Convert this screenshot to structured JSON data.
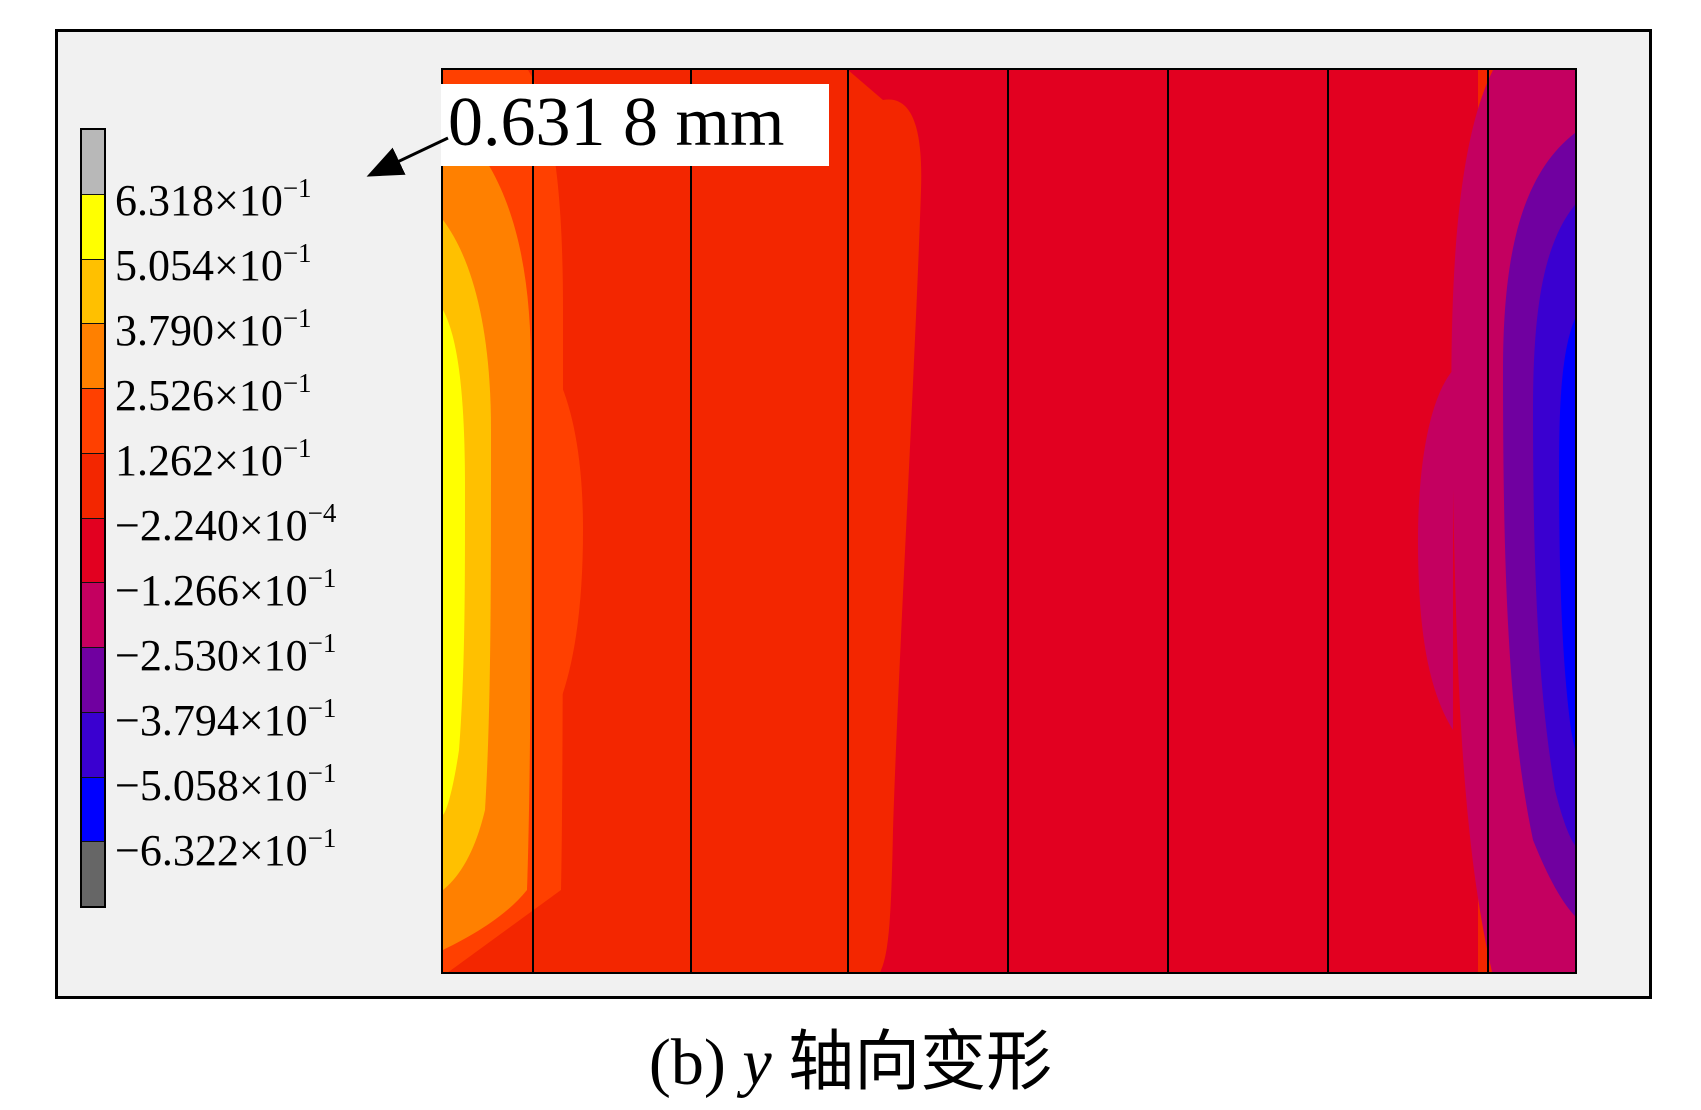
{
  "legend": {
    "colors": [
      "#b8b8b8",
      "#ffff00",
      "#ffc000",
      "#ff8000",
      "#ff4000",
      "#f32600",
      "#e20020",
      "#c40060",
      "#7000a0",
      "#3a00d0",
      "#0000ff",
      "#666666"
    ],
    "labels": [
      {
        "mantissa": "6.318",
        "exponent": "−1"
      },
      {
        "mantissa": "5.054",
        "exponent": "−1"
      },
      {
        "mantissa": "3.790",
        "exponent": "−1"
      },
      {
        "mantissa": "2.526",
        "exponent": "−1"
      },
      {
        "mantissa": "1.262",
        "exponent": "−1"
      },
      {
        "mantissa": "−2.240",
        "exponent": "−4"
      },
      {
        "mantissa": "−1.266",
        "exponent": "−1"
      },
      {
        "mantissa": "−2.530",
        "exponent": "−1"
      },
      {
        "mantissa": "−3.794",
        "exponent": "−1"
      },
      {
        "mantissa": "−5.058",
        "exponent": "−1"
      },
      {
        "mantissa": "−6.322",
        "exponent": "−1"
      }
    ],
    "times": "×",
    "base": "10"
  },
  "callout": {
    "text": "0.631 8 mm"
  },
  "caption": {
    "prefix": "(b)",
    "variable": "y",
    "suffix": "轴向变形"
  }
}
